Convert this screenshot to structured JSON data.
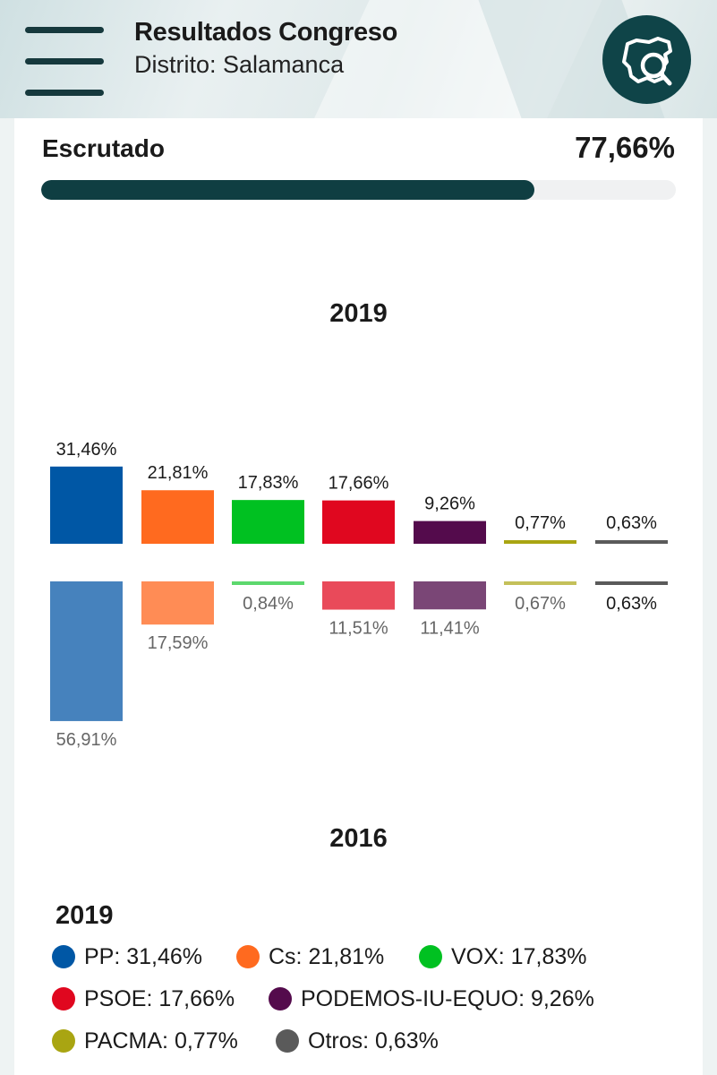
{
  "header": {
    "title": "Resultados Congreso",
    "subtitle": "Distrito: Salamanca",
    "menu_icon": "hamburger-menu-icon",
    "map_button_icon": "map-search-icon"
  },
  "progress": {
    "label": "Escrutado",
    "value_text": "77,66%",
    "value": 77.66,
    "color": "#0f3e42"
  },
  "chart_data": {
    "type": "bar",
    "title_top": "2019",
    "title_bottom": "2016",
    "categories": [
      "PP",
      "Cs",
      "VOX",
      "PSOE",
      "PODEMOS-IU-EQUO",
      "PACMA",
      "Otros"
    ],
    "series": [
      {
        "name": "2019",
        "values": [
          31.46,
          21.81,
          17.83,
          17.66,
          9.26,
          0.77,
          0.63
        ],
        "labels": [
          "31,46%",
          "21,81%",
          "17,83%",
          "17,66%",
          "9,26%",
          "0,77%",
          "0,63%"
        ],
        "colors": [
          "#0057a5",
          "#ff6a1f",
          "#00c121",
          "#e0071f",
          "#540b4c",
          "#a9a512",
          "#5a5a5a"
        ]
      },
      {
        "name": "2016",
        "values": [
          56.91,
          17.59,
          0.84,
          11.51,
          11.41,
          0.67,
          0.63
        ],
        "labels": [
          "56,91%",
          "17,59%",
          "0,84%",
          "11,51%",
          "11,41%",
          "0,67%",
          "0,63%"
        ],
        "colors": [
          "#4682bd",
          "#ff8c55",
          "#5cd86d",
          "#e94a5a",
          "#7a4676",
          "#c4c05a",
          "#5a5a5a"
        ]
      }
    ]
  },
  "legend": {
    "title": "2019",
    "items": [
      {
        "text": "PP: 31,46%",
        "color": "#0057a5"
      },
      {
        "text": "Cs: 21,81%",
        "color": "#ff6a1f"
      },
      {
        "text": "VOX: 17,83%",
        "color": "#00c121"
      },
      {
        "text": "PSOE: 17,66%",
        "color": "#e0071f"
      },
      {
        "text": "PODEMOS-IU-EQUO: 9,26%",
        "color": "#540b4c"
      },
      {
        "text": "PACMA: 0,77%",
        "color": "#a9a512"
      },
      {
        "text": "Otros: 0,63%",
        "color": "#5a5a5a"
      }
    ]
  }
}
